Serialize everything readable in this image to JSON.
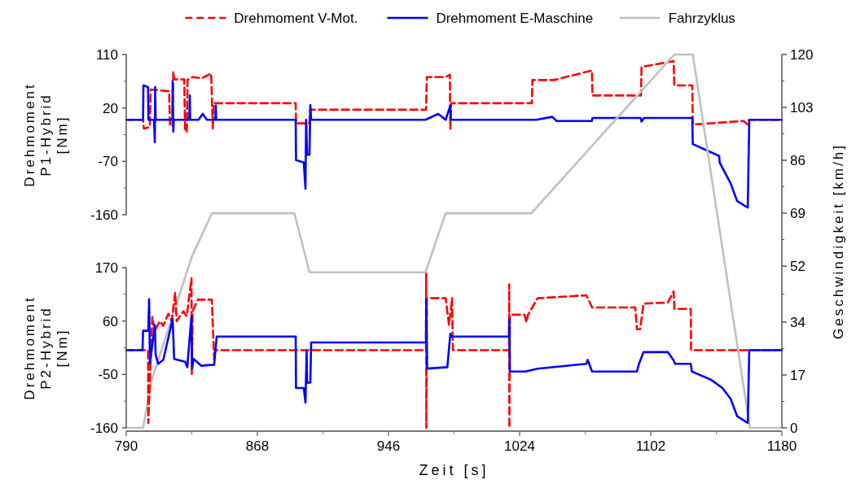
{
  "chart_data": [
    {
      "type": "line",
      "ylabel": "Drehmoment P1-Hybrid [Nm]",
      "xlim": [
        790,
        1180
      ],
      "ylim": [
        -160,
        110
      ],
      "yticks": [
        -160,
        -70,
        20,
        110
      ],
      "tick_labels": "y",
      "grid": false,
      "legend": "top",
      "marker": "none",
      "series": [
        {
          "name": "Drehmoment V-Mot.",
          "color": "#ff0000",
          "line_style": "dashed",
          "x": [
            790,
            800,
            800.5,
            804,
            804.5,
            815.5,
            816,
            817.5,
            818,
            818.5,
            824.5,
            825,
            826,
            826.5,
            829.5,
            835,
            840.5,
            841.5,
            842,
            890.8,
            891,
            899,
            899.5,
            968.3,
            968.8,
            980,
            982.5,
            982.8,
            983.3,
            1031.3,
            1031.6,
            1044.4,
            1067,
            1067.3,
            1096.2,
            1096.5,
            1115.6,
            1116,
            1126.7,
            1127,
            1157.2,
            1159.7,
            1160.6,
            1180
          ],
          "values": [
            0,
            0,
            -15,
            -12,
            51,
            48,
            -10,
            -10,
            81,
            68,
            68,
            -20,
            -20,
            68,
            72,
            70,
            78,
            -15,
            28,
            28,
            -6,
            -6,
            17,
            17,
            72,
            72,
            76,
            -15,
            28,
            28,
            67,
            67,
            83,
            41,
            41,
            89,
            99,
            58,
            58,
            -8,
            -2,
            -8,
            0,
            0
          ]
        },
        {
          "name": "Drehmoment E-Maschine",
          "color": "#0000ff",
          "line_style": "solid",
          "x": [
            790,
            800,
            800.2,
            803,
            803.2,
            806.5,
            807,
            807.2,
            807.5,
            817.5,
            817.6,
            818,
            818.3,
            827.5,
            827.8,
            828,
            833,
            835.5,
            838,
            843,
            843.3,
            843.5,
            890.8,
            891,
            895.6,
            896.6,
            897,
            897.6,
            899,
            899.5,
            900,
            968,
            975.6,
            980,
            982.8,
            983,
            1034,
            1043.4,
            1046,
            1067,
            1067.3,
            1096,
            1096.5,
            1098,
            1126.7,
            1127,
            1142.7,
            1143,
            1149.5,
            1153.4,
            1159.7,
            1160.6,
            1180
          ],
          "values": [
            0,
            0,
            58,
            55,
            0,
            0,
            -38,
            55,
            0,
            0,
            65,
            -20,
            0,
            0,
            41,
            0,
            0,
            10,
            0,
            0,
            24,
            0,
            0,
            -68,
            -72,
            -116,
            0,
            -59,
            -59,
            25,
            0,
            0,
            10,
            0,
            24,
            0,
            0,
            5,
            -2,
            -2,
            3,
            3,
            -3,
            3,
            3,
            -41,
            -61,
            -72,
            -107,
            -137,
            -148,
            0,
            0
          ]
        }
      ]
    },
    {
      "type": "line",
      "xlabel": "Zeit [s]",
      "ylabel": "Drehmoment P2-Hybrid [Nm]",
      "y2label": "Geschwindigkeit [km/h]",
      "xlim": [
        790,
        1180
      ],
      "xticks": [
        790,
        868,
        946,
        1024,
        1102,
        1180
      ],
      "ylim": [
        -160,
        170
      ],
      "yticks": [
        -160,
        -50,
        60,
        170
      ],
      "y2lim": [
        0,
        120
      ],
      "y2ticks": [
        0,
        17,
        34,
        52,
        69,
        86,
        103,
        120
      ],
      "grid": false,
      "legend": "top",
      "marker": "none",
      "series": [
        {
          "name": "Fahrzyklus",
          "color": "#c0c0c0",
          "line_style": "solid",
          "axis": "y2",
          "x": [
            790,
            800,
            805,
            826,
            829,
            841,
            890,
            899,
            968,
            980,
            1031,
            1116,
            1127,
            1161,
            1180
          ],
          "values": [
            0,
            0,
            15,
            50,
            55,
            69,
            69,
            50,
            50,
            69,
            69,
            120,
            120,
            0,
            0
          ]
        },
        {
          "name": "Drehmoment V-Mot.",
          "color": "#ff0000",
          "line_style": "dashed",
          "x": [
            790,
            803,
            803.1,
            805.5,
            807,
            810,
            812,
            815,
            817,
            819.1,
            820,
            824,
            826,
            828.8,
            829,
            829.5,
            832.6,
            840.9,
            842.3,
            842.8,
            968.3,
            968.4,
            968.5,
            968.8,
            980,
            982,
            983.8,
            984.3,
            1017.7,
            1017.8,
            1017.9,
            1018.2,
            1027,
            1028,
            1029,
            1034.7,
            1063.7,
            1067.1,
            1092.8,
            1093.8,
            1095.7,
            1097.7,
            1112.2,
            1115.6,
            1116.1,
            1125.8,
            1126,
            1180
          ],
          "values": [
            0,
            0,
            -150,
            68,
            40,
            60,
            50,
            75,
            60,
            118,
            60,
            80,
            70,
            148,
            -49,
            80,
            104,
            104,
            -20,
            0,
            0,
            158,
            -160,
            107,
            107,
            52,
            107,
            0,
            0,
            135,
            -160,
            73,
            73,
            57,
            73,
            107,
            113,
            88,
            88,
            43,
            43,
            96,
            98,
            121,
            85,
            85,
            0,
            0
          ]
        },
        {
          "name": "Drehmoment E-Maschine",
          "color": "#0000ff",
          "line_style": "solid",
          "x": [
            790,
            799.7,
            800,
            803.1,
            803.6,
            804.1,
            807,
            807.5,
            809,
            812,
            817.6,
            818.5,
            825,
            826.3,
            828.8,
            829.2,
            830,
            834.6,
            842.3,
            843.8,
            890.8,
            891,
            895.6,
            896.6,
            897.3,
            897.6,
            899.5,
            900,
            968.3,
            968.5,
            969,
            981,
            982.8,
            983.5,
            1017.7,
            1017.9,
            1018.2,
            1027.4,
            1034.7,
            1063.7,
            1064.5,
            1067.1,
            1093.8,
            1095,
            1097.7,
            1112.2,
            1115.6,
            1116.5,
            1125.8,
            1126.5,
            1137.9,
            1144.6,
            1149.5,
            1153.4,
            1159.7,
            1160.6,
            1180
          ],
          "values": [
            0,
            0,
            40,
            40,
            105,
            -28,
            52,
            -10,
            -28,
            -20,
            64,
            -18,
            -24,
            -35,
            70,
            -38,
            -18,
            -32,
            -30,
            28,
            28,
            -78,
            -78,
            -108,
            0,
            -67,
            -67,
            16,
            16,
            105,
            -38,
            -35,
            34,
            28,
            28,
            64,
            -44,
            -44,
            -38,
            -28,
            -20,
            -44,
            -44,
            -28,
            -4,
            -4,
            -21,
            -28,
            -28,
            -44,
            -61,
            -78,
            -100,
            -136,
            -150,
            0,
            0
          ]
        }
      ]
    }
  ]
}
